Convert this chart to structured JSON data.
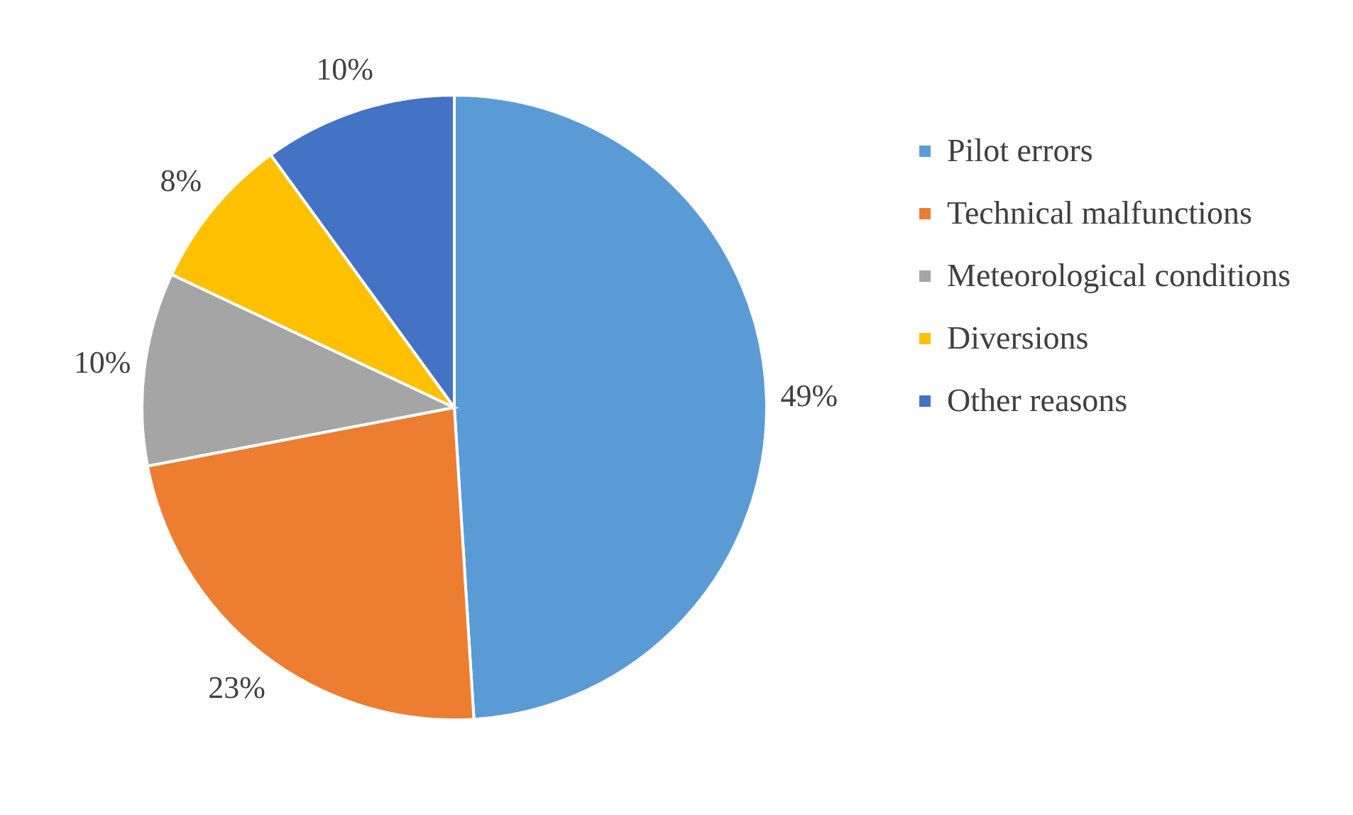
{
  "chart_data": {
    "type": "pie",
    "categories": [
      "Pilot errors",
      "Technical malfunctions",
      "Meteorological conditions",
      "Diversions",
      "Other reasons"
    ],
    "values": [
      49,
      23,
      10,
      8,
      10
    ],
    "colors": [
      "#5b9bd5",
      "#ed7d31",
      "#a5a5a5",
      "#ffc000",
      "#4472c4"
    ],
    "value_labels": [
      "49%",
      "23%",
      "10%",
      "8%",
      "10%"
    ],
    "legend": "right"
  }
}
